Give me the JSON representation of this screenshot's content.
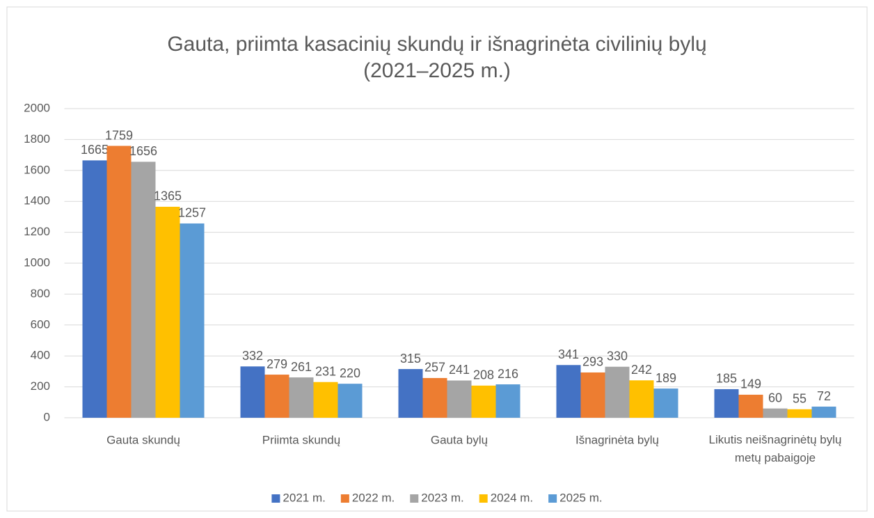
{
  "chart_data": {
    "type": "bar",
    "title": [
      "Gauta, priimta kasacinių skundų ir išnagrinėta civilinių bylų",
      "(2021–2025 m.)"
    ],
    "categories": [
      "Gauta skundų",
      "Priimta skundų",
      "Gauta bylų",
      "Išnagrinėta bylų",
      "Likutis neišnagrinėtų bylų metų pabaigoje"
    ],
    "series": [
      {
        "name": "2021 m.",
        "color": "#4472c4",
        "values": [
          1665,
          332,
          315,
          341,
          185
        ]
      },
      {
        "name": "2022 m.",
        "color": "#ed7d31",
        "values": [
          1759,
          279,
          257,
          293,
          149
        ]
      },
      {
        "name": "2023 m.",
        "color": "#a5a5a5",
        "values": [
          1656,
          261,
          241,
          330,
          60
        ]
      },
      {
        "name": "2024 m.",
        "color": "#ffc000",
        "values": [
          1365,
          231,
          208,
          242,
          55
        ]
      },
      {
        "name": "2025 m.",
        "color": "#5b9bd5",
        "values": [
          1257,
          220,
          216,
          189,
          72
        ]
      }
    ],
    "ylim": [
      0,
      2000
    ],
    "yticks": [
      0,
      200,
      400,
      600,
      800,
      1000,
      1200,
      1400,
      1600,
      1800,
      2000
    ],
    "grid": true,
    "legend": "bottom"
  }
}
